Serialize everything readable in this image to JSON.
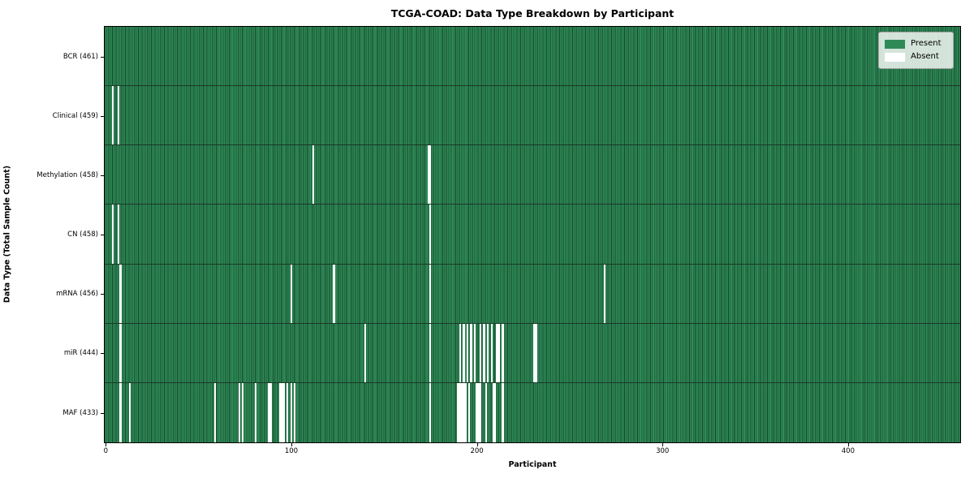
{
  "title": "TCGA-COAD: Data Type Breakdown by Participant",
  "x_axis": {
    "label": "Participant",
    "ticks": [
      0,
      100,
      200,
      300,
      400
    ]
  },
  "y_axis": {
    "label": "Data Type (Total Sample Count)"
  },
  "legend": {
    "items": [
      {
        "label": "Present",
        "color": "#2e8b57"
      },
      {
        "label": "Absent",
        "color": "#ffffff"
      }
    ]
  },
  "colors": {
    "present": "#2e8b57",
    "present_edge": "#17452b",
    "absent": "#ffffff",
    "row_separator": "#1b3826",
    "plot_border": "#000000"
  },
  "chart_data": {
    "type": "heatmap",
    "title": "TCGA-COAD: Data Type Breakdown by Participant",
    "xlabel": "Participant",
    "ylabel": "Data Type (Total Sample Count)",
    "legend_position": "upper right",
    "n_participants": 461,
    "x_range": [
      -0.5,
      460.5
    ],
    "value_encoding": {
      "present": "#2e8b57",
      "absent": "#ffffff"
    },
    "rows": [
      {
        "data_type": "BCR",
        "label": "BCR (461)",
        "count": 461,
        "absent_participants": []
      },
      {
        "data_type": "Clinical",
        "label": "Clinical (459)",
        "count": 459,
        "absent_participants": [
          4,
          7
        ]
      },
      {
        "data_type": "Methylation",
        "label": "Methylation (458)",
        "count": 458,
        "absent_participants": [
          112,
          174,
          175
        ]
      },
      {
        "data_type": "CN",
        "label": "CN (458)",
        "count": 458,
        "absent_participants": [
          4,
          7,
          175
        ]
      },
      {
        "data_type": "mRNA",
        "label": "mRNA (456)",
        "count": 456,
        "absent_participants": [
          8,
          100,
          123,
          175,
          269
        ]
      },
      {
        "data_type": "miR",
        "label": "miR (444)",
        "count": 444,
        "absent_participants": [
          8,
          140,
          175,
          191,
          193,
          195,
          197,
          199,
          202,
          204,
          206,
          208,
          211,
          212,
          214,
          231,
          232
        ]
      },
      {
        "data_type": "MAF",
        "label": "MAF (433)",
        "count": 433,
        "absent_participants": [
          8,
          13,
          59,
          72,
          74,
          81,
          88,
          89,
          94,
          95,
          96,
          98,
          100,
          102,
          175,
          190,
          191,
          192,
          193,
          194,
          196,
          200,
          201,
          202,
          205,
          209,
          210,
          214
        ]
      }
    ]
  }
}
